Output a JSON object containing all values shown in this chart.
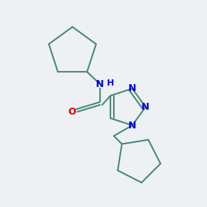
{
  "bg_color": "#edf1f3",
  "bond_color": "#4a8878",
  "N_color": "#0000ee",
  "O_color": "#ee0000",
  "line_width": 1.6,
  "figsize": [
    3.0,
    3.0
  ],
  "dpi": 100,
  "xlim": [
    0,
    300
  ],
  "ylim": [
    0,
    300
  ]
}
